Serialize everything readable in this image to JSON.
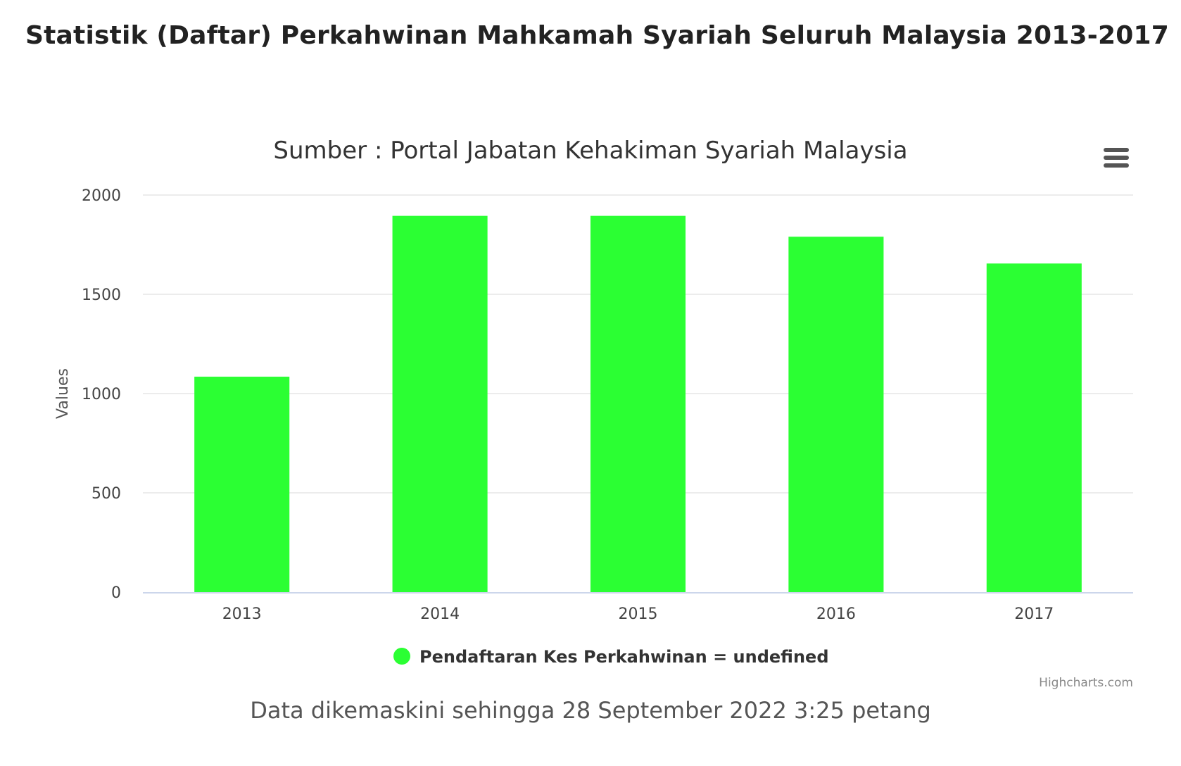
{
  "page": {
    "title": "Statistik (Daftar) Perkahwinan Mahkamah Syariah Seluruh Malaysia 2013-2017",
    "footer": "Data dikemaskini sehingga 28 September 2022 3:25 petang"
  },
  "menu": {
    "icon": "hamburger-menu-icon"
  },
  "credits": "Highcharts.com",
  "colors": {
    "bar": "#2bff33",
    "grid": "#e6e6e6",
    "axis": "#ccd6eb",
    "text": "#333333"
  },
  "chart_data": {
    "type": "bar",
    "title": "Sumber : Portal Jabatan Kehakiman Syariah Malaysia",
    "ylabel": "Values",
    "xlabel": "",
    "categories": [
      "2013",
      "2014",
      "2015",
      "2016",
      "2017"
    ],
    "series": [
      {
        "name": "Pendaftaran Kes Perkahwinan = undefined",
        "values": [
          1085,
          1895,
          1895,
          1790,
          1655
        ]
      }
    ],
    "ylim": [
      0,
      2000
    ],
    "yticks": [
      0,
      500,
      1000,
      1500,
      2000
    ],
    "grid": true,
    "legend": "bottom-center"
  }
}
